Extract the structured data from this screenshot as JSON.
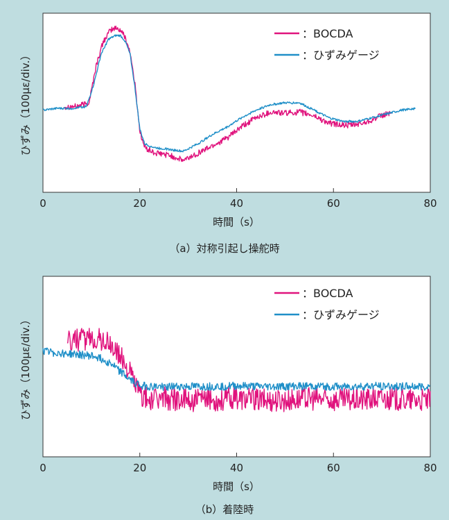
{
  "colors": {
    "background": "#bfdde0",
    "plot_bg": "#ffffff",
    "bocda": "#e0137d",
    "gauge": "#1f8fc8"
  },
  "chart_data": [
    {
      "type": "line",
      "caption": "（a）対称引起し操舵時",
      "xlabel": "時間（s）",
      "ylabel": "ひずみ（100μɛ/div.）",
      "xlim": [
        0,
        80
      ],
      "ylim": [
        -2.2,
        2.6
      ],
      "x_ticks": [
        "0",
        "20",
        "40",
        "60",
        "80"
      ],
      "grid": false,
      "legend_position": "top-right",
      "series": [
        {
          "name": "：BOCDA",
          "color": "#e0137d",
          "noise": 0.08,
          "x": [
            4.5,
            7,
            9.5,
            11,
            12.5,
            14,
            15,
            16,
            17,
            18,
            19,
            20,
            21,
            23,
            26,
            29,
            32,
            35,
            38,
            41,
            44,
            47,
            50,
            53,
            56,
            59,
            62,
            64,
            66,
            68,
            70,
            72
          ],
          "y": [
            0.1,
            0.1,
            0.2,
            1.2,
            1.85,
            2.15,
            2.2,
            2.15,
            1.95,
            1.55,
            0.7,
            -0.55,
            -1.0,
            -1.15,
            -1.2,
            -1.35,
            -1.15,
            -0.95,
            -0.75,
            -0.45,
            -0.2,
            -0.05,
            -0.08,
            -0.05,
            -0.15,
            -0.35,
            -0.4,
            -0.4,
            -0.35,
            -0.25,
            -0.15,
            -0.05
          ]
        },
        {
          "name": "：ひずみゲージ",
          "color": "#1f8fc8",
          "noise": 0.03,
          "x": [
            0,
            3,
            6,
            9,
            10.5,
            12,
            13.5,
            15,
            16,
            17,
            18,
            19,
            20,
            21,
            23,
            26,
            29,
            32,
            35,
            38,
            41,
            44,
            47,
            50,
            53,
            56,
            59,
            62,
            65,
            68,
            71,
            74,
            77
          ],
          "y": [
            0.0,
            0.05,
            0.05,
            0.1,
            0.7,
            1.5,
            1.9,
            2.0,
            2.0,
            1.85,
            1.5,
            0.6,
            -0.5,
            -0.9,
            -1.0,
            -1.05,
            -1.1,
            -0.9,
            -0.65,
            -0.45,
            -0.2,
            0.0,
            0.15,
            0.2,
            0.2,
            0.0,
            -0.2,
            -0.3,
            -0.3,
            -0.2,
            -0.1,
            0.0,
            0.05
          ]
        }
      ]
    },
    {
      "type": "line",
      "caption": "（b）着陸時",
      "xlabel": "時間（s）",
      "ylabel": "ひずみ（100μɛ/div.）",
      "xlim": [
        0,
        80
      ],
      "ylim": [
        -3.0,
        2.4
      ],
      "x_ticks": [
        "0",
        "20",
        "40",
        "60",
        "80"
      ],
      "grid": false,
      "legend_position": "top-right",
      "series": [
        {
          "name": "：BOCDA",
          "color": "#e0137d",
          "noise": 0.35,
          "x": [
            5,
            8,
            11,
            13,
            15,
            17,
            18.5,
            20,
            22,
            25,
            30,
            35,
            40,
            45,
            50,
            55,
            60,
            65,
            70,
            75,
            80
          ],
          "y": [
            0.45,
            0.5,
            0.55,
            0.45,
            0.2,
            -0.2,
            -0.6,
            -1.1,
            -1.3,
            -1.25,
            -1.3,
            -1.3,
            -1.25,
            -1.3,
            -1.3,
            -1.25,
            -1.3,
            -1.3,
            -1.25,
            -1.3,
            -1.3
          ]
        },
        {
          "name": "：ひずみゲージ",
          "color": "#1f8fc8",
          "noise": 0.12,
          "x": [
            0,
            4,
            8,
            11,
            14,
            16,
            18,
            20,
            22,
            25,
            30,
            35,
            40,
            45,
            50,
            55,
            60,
            65,
            70,
            75,
            80
          ],
          "y": [
            0.15,
            0.1,
            0.05,
            0.0,
            -0.2,
            -0.45,
            -0.7,
            -0.85,
            -0.9,
            -0.9,
            -0.9,
            -0.9,
            -0.88,
            -0.9,
            -0.9,
            -0.88,
            -0.9,
            -0.9,
            -0.88,
            -0.9,
            -0.9
          ]
        }
      ]
    }
  ]
}
